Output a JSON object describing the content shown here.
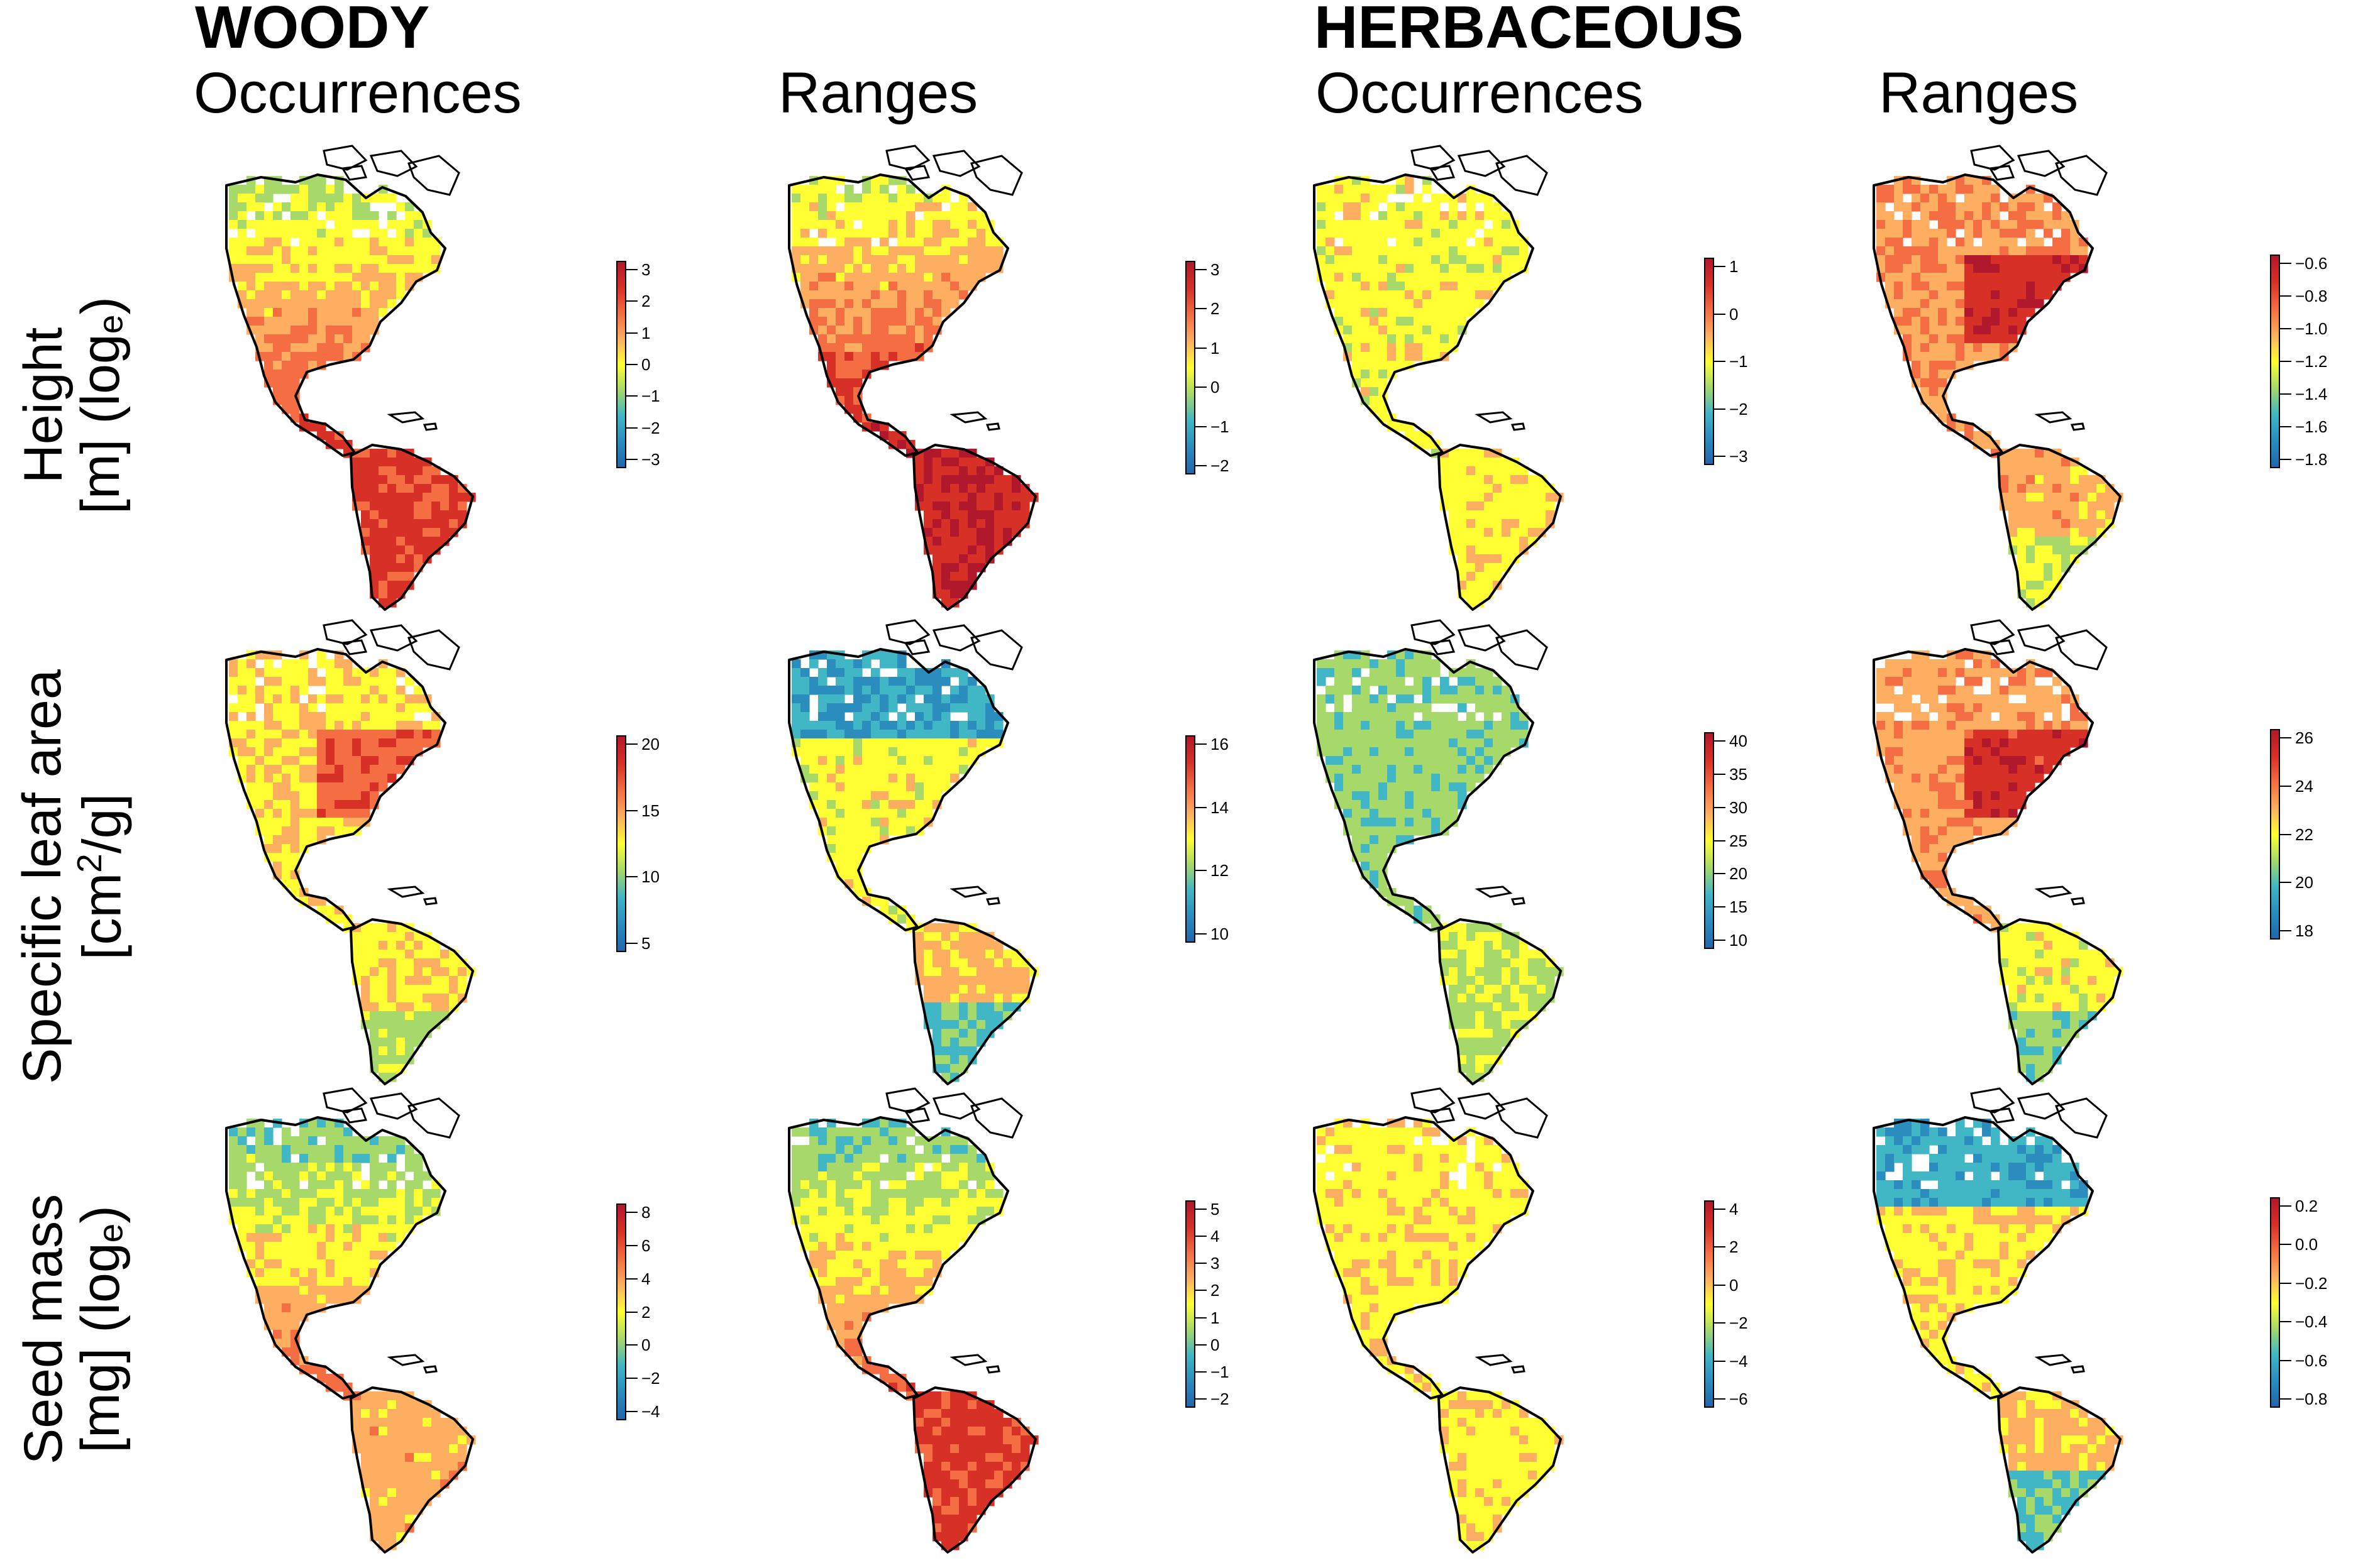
{
  "headers": {
    "woody": "WOODY",
    "herbaceous": "HERBACEOUS",
    "columns": [
      "Occurrences",
      "Ranges",
      "Occurrences",
      "Ranges"
    ]
  },
  "rows": [
    {
      "label_line1": "Height",
      "label_line2_pre": "[m] (log",
      "label_line2_sub": "e",
      "label_line2_post": ")"
    },
    {
      "label_line1": "Specific leaf area",
      "label_line2_pre": "[cm",
      "label_line2_sup": "2",
      "label_line2_post": "/g]"
    },
    {
      "label_line1": "Seed mass",
      "label_line2_pre": "[mg] (log",
      "label_line2_sub": "e",
      "label_line2_post": ")"
    }
  ],
  "palette": [
    "#2166ac",
    "#2b8cbe",
    "#41b6c4",
    "#a6d96a",
    "#ffff33",
    "#fdae61",
    "#f46d43",
    "#d73027",
    "#b2182b"
  ],
  "panels": [
    {
      "row": 0,
      "col": 0,
      "group": "WOODY",
      "method": "Occurrences",
      "ticks": [
        "3",
        "2",
        "1",
        "0",
        "−1",
        "−2",
        "−3"
      ],
      "na_level": 0.55,
      "sa_level": 0.85,
      "pattern": "tropics-high"
    },
    {
      "row": 0,
      "col": 1,
      "group": "WOODY",
      "method": "Ranges",
      "ticks": [
        "3",
        "2",
        "1",
        "0",
        "−1",
        "−2"
      ],
      "na_level": 0.6,
      "sa_level": 0.92,
      "pattern": "tropics-high"
    },
    {
      "row": 0,
      "col": 2,
      "group": "HERBACEOUS",
      "method": "Occurrences",
      "ticks": [
        "1",
        "0",
        "−1",
        "−2",
        "−3"
      ],
      "na_level": 0.5,
      "sa_level": 0.52,
      "pattern": "flat"
    },
    {
      "row": 0,
      "col": 3,
      "group": "HERBACEOUS",
      "method": "Ranges",
      "ticks": [
        "−0.6",
        "−0.8",
        "−1.0",
        "−1.2",
        "−1.4",
        "−1.6",
        "−1.8"
      ],
      "na_level": 0.72,
      "sa_level": 0.62,
      "pattern": "temperate-high"
    },
    {
      "row": 1,
      "col": 0,
      "group": "WOODY",
      "method": "Occurrences",
      "ticks": [
        "20",
        "15",
        "10",
        "5"
      ],
      "na_level": 0.6,
      "sa_level": 0.55,
      "pattern": "temperate-high"
    },
    {
      "row": 1,
      "col": 1,
      "group": "WOODY",
      "method": "Ranges",
      "ticks": [
        "16",
        "14",
        "12",
        "10"
      ],
      "na_level": 0.45,
      "sa_level": 0.55,
      "pattern": "mixed"
    },
    {
      "row": 1,
      "col": 2,
      "group": "HERBACEOUS",
      "method": "Occurrences",
      "ticks": [
        "40",
        "35",
        "30",
        "25",
        "20",
        "15",
        "10"
      ],
      "na_level": 0.35,
      "sa_level": 0.42,
      "pattern": "flat"
    },
    {
      "row": 1,
      "col": 3,
      "group": "HERBACEOUS",
      "method": "Ranges",
      "ticks": [
        "26",
        "24",
        "22",
        "20",
        "18"
      ],
      "na_level": 0.7,
      "sa_level": 0.5,
      "pattern": "temperate-high"
    },
    {
      "row": 2,
      "col": 0,
      "group": "WOODY",
      "method": "Occurrences",
      "ticks": [
        "8",
        "6",
        "4",
        "2",
        "0",
        "−2",
        "−4"
      ],
      "na_level": 0.45,
      "sa_level": 0.62,
      "pattern": "tropics-high"
    },
    {
      "row": 2,
      "col": 1,
      "group": "WOODY",
      "method": "Ranges",
      "ticks": [
        "5",
        "4",
        "3",
        "2",
        "1",
        "0",
        "−1",
        "−2"
      ],
      "na_level": 0.45,
      "sa_level": 0.85,
      "pattern": "tropics-high"
    },
    {
      "row": 2,
      "col": 2,
      "group": "HERBACEOUS",
      "method": "Occurrences",
      "ticks": [
        "4",
        "2",
        "0",
        "−2",
        "−4",
        "−6"
      ],
      "na_level": 0.52,
      "sa_level": 0.52,
      "pattern": "flat"
    },
    {
      "row": 2,
      "col": 3,
      "group": "HERBACEOUS",
      "method": "Ranges",
      "ticks": [
        "0.2",
        "0.0",
        "−0.2",
        "−0.4",
        "−0.6",
        "−0.8"
      ],
      "na_level": 0.48,
      "sa_level": 0.55,
      "pattern": "mixed"
    }
  ]
}
